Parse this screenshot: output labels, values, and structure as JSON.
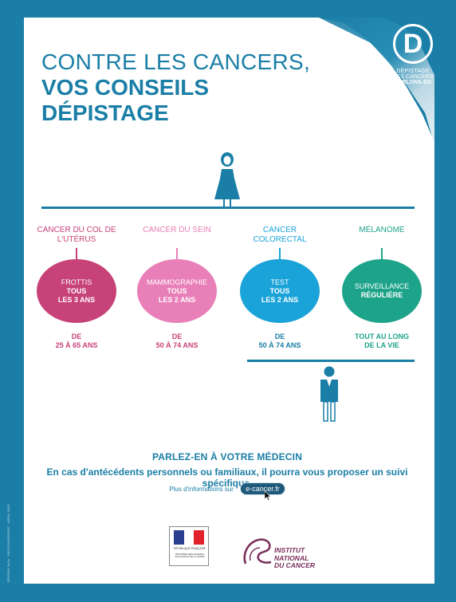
{
  "brand": {
    "logo_letter": "D",
    "logo_line1": "DÉPISTAGE",
    "logo_line2": "DES CANCERS",
    "logo_line3": "PARLONS-EN"
  },
  "title": {
    "line1": "CONTRE LES CANCERS,",
    "line2": "VOS CONSEILS",
    "line3": "DÉPISTAGE"
  },
  "screenings": [
    {
      "head": "CANCER DU COL DE L'UTÉRUS",
      "test": "FROTTIS",
      "freq1": "TOUS",
      "freq2": "LES 3 ANS",
      "age1": "DE",
      "age2": "25 À 65 ANS",
      "color": "#c74278"
    },
    {
      "head": "CANCER DU SEIN",
      "test": "MAMMOGRAPHIE",
      "freq1": "TOUS",
      "freq2": "LES 2 ANS",
      "age1": "DE",
      "age2": "50 À 74 ANS",
      "color": "#e87fb8"
    },
    {
      "head": "CANCER COLORECTAL",
      "test": "TEST",
      "freq1": "TOUS",
      "freq2": "LES 2 ANS",
      "age1": "DE",
      "age2": "50 À 74 ANS",
      "color": "#1aa3d9"
    },
    {
      "head": "MÉLANOME",
      "test": "SURVEILLANCE",
      "freq1": "RÉGULIÈRE",
      "freq2": "",
      "age1": "TOUT AU LONG",
      "age2": "DE LA VIE",
      "color": "#1da38a"
    }
  ],
  "talk": {
    "title": "PARLEZ-EN À VOTRE MÉDECIN",
    "text": "En cas d'antécédents personnels ou familiaux, il pourra vous proposer un suivi spécifique."
  },
  "more": {
    "label": "Plus d'informations sur",
    "link": "e-cancer.fr"
  },
  "partners": {
    "rf_line1": "RÉPUBLIQUE FRANÇAISE",
    "rf_line2": "MINISTÈRE DES AFFAIRES SOCIALES ET DE LA SANTÉ",
    "inca_line1": "INSTITUT",
    "inca_line2": "NATIONAL",
    "inca_line3": "DU CANCER"
  },
  "spine_text": "ÉDITION INCa · DEPLCANCERS17 · AVRIL 2016",
  "colors": {
    "primary": "#1a7ea6",
    "cervical": "#c74278",
    "breast": "#e87fb8",
    "colorectal": "#1aa3d9",
    "melanoma": "#1da38a"
  }
}
